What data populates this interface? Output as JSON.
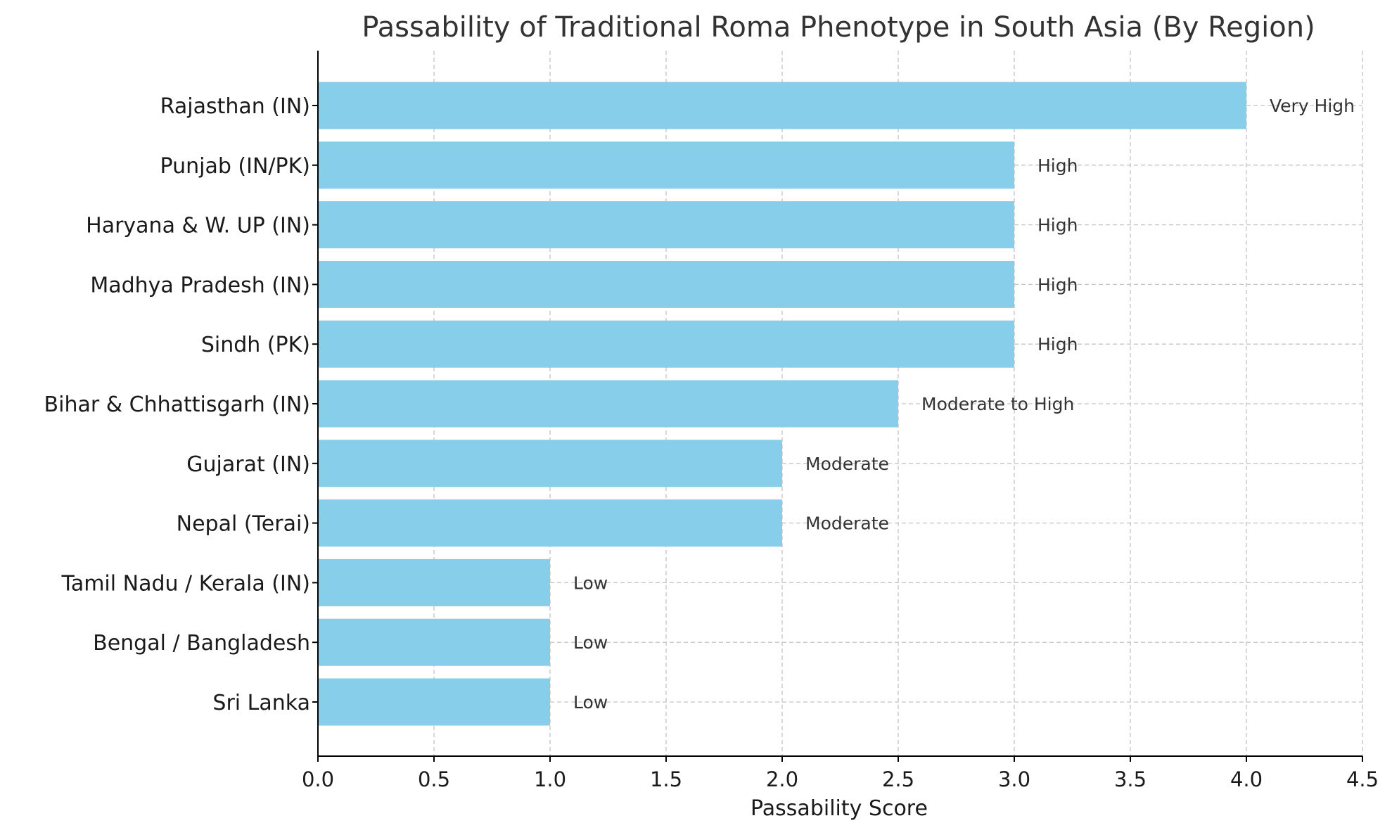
{
  "chart_data": {
    "type": "bar",
    "orientation": "horizontal",
    "title": "Passability of Traditional Roma Phenotype in South Asia (By Region)",
    "xlabel": "Passability Score",
    "ylabel": "",
    "xlim": [
      0,
      4.5
    ],
    "x_ticks": [
      "0.0",
      "0.5",
      "1.0",
      "1.5",
      "2.0",
      "2.5",
      "3.0",
      "3.5",
      "4.0",
      "4.5"
    ],
    "grid": true,
    "bar_color": "#87ceeb",
    "categories": [
      "Rajasthan (IN)",
      "Punjab (IN/PK)",
      "Haryana & W. UP (IN)",
      "Madhya Pradesh (IN)",
      "Sindh (PK)",
      "Bihar & Chhattisgarh (IN)",
      "Gujarat (IN)",
      "Nepal (Terai)",
      "Tamil Nadu / Kerala (IN)",
      "Bengal / Bangladesh",
      "Sri Lanka"
    ],
    "values": [
      4.0,
      3.0,
      3.0,
      3.0,
      3.0,
      2.5,
      2.0,
      2.0,
      1.0,
      1.0,
      1.0
    ],
    "data_labels": [
      "Very High",
      "High",
      "High",
      "High",
      "High",
      "Moderate to High",
      "Moderate",
      "Moderate",
      "Low",
      "Low",
      "Low"
    ]
  }
}
